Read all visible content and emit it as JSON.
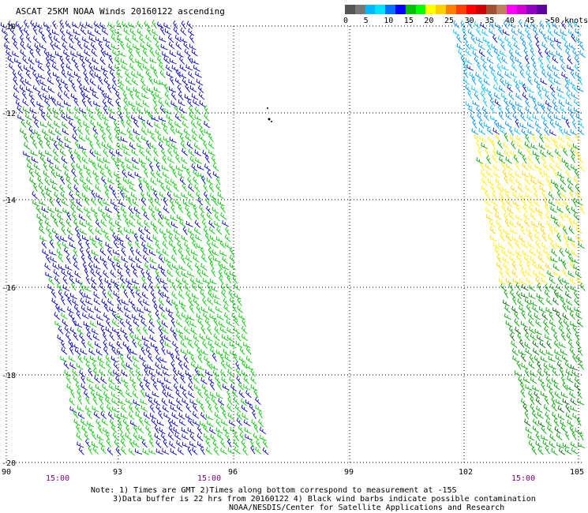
{
  "title": "ASCAT 25KM NOAA Winds 20160122 ascending",
  "colorbar": {
    "labels": [
      "0",
      "5",
      "10",
      "15",
      "20",
      "25",
      "30",
      "35",
      "40",
      "45",
      ">50 knots"
    ],
    "colors": [
      "#555555",
      "#777777",
      "#00b8ff",
      "#00e0ff",
      "#0070ff",
      "#0000ff",
      "#00c000",
      "#00ff00",
      "#ffff00",
      "#ffd000",
      "#ff8000",
      "#ff4000",
      "#ff0000",
      "#d00000",
      "#a05030",
      "#c08060",
      "#ff00ff",
      "#d000d0",
      "#9000c0",
      "#6000a0"
    ]
  },
  "map": {
    "lat_labels": [
      "-10",
      "-12",
      "-14",
      "-16",
      "-18",
      "-20"
    ],
    "lon_labels": [
      "90",
      "93",
      "96",
      "99",
      "102",
      "105"
    ],
    "time_labels": [
      "15:00",
      "15:00",
      "15:00"
    ],
    "lat_range": [
      -20,
      -10
    ],
    "lon_range": [
      90,
      105
    ]
  },
  "chart_data": {
    "type": "scatter",
    "description_units": "wind barbs, knots",
    "swaths": [
      {
        "time": "15:00",
        "lon_center": 93,
        "dominant_speeds": [
          "10-15",
          "15-20"
        ]
      },
      {
        "time": "15:00",
        "lon_center": 104,
        "dominant_speeds": [
          "5-15",
          "15-20",
          "20-25"
        ]
      }
    ]
  },
  "notes": {
    "line1": "Note: 1) Times are GMT 2)Times along bottom correspond to measurement at -15S",
    "line2": "3)Data buffer is 22 hrs from 20160122 4) Black wind barbs indicate possible contamination",
    "line3": "NOAA/NESDIS/Center for Satellite Applications and Research"
  }
}
